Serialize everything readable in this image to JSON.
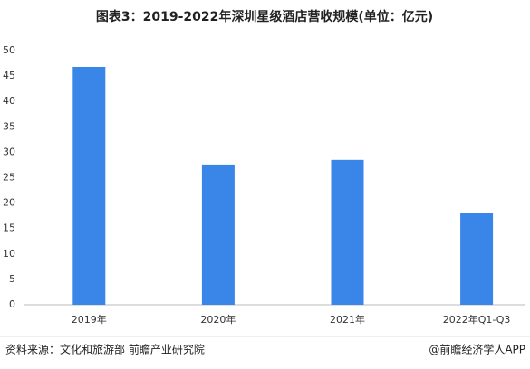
{
  "chart_data": {
    "type": "bar",
    "title": "图表3：2019-2022年深圳星级酒店营收规模(单位：亿元)",
    "categories": [
      "2019年",
      "2020年",
      "2021年",
      "2022年Q1-Q3"
    ],
    "values": [
      46.8,
      27.6,
      28.5,
      18.1
    ],
    "color": "#3a86e8",
    "ylim": [
      0,
      50
    ],
    "yticks": [
      0,
      5,
      10,
      15,
      20,
      25,
      30,
      35,
      40,
      45,
      50
    ],
    "grid": false
  },
  "footer": {
    "source": "资料来源：文化和旅游部 前瞻产业研究院",
    "credit": "@前瞻经济学人APP"
  }
}
